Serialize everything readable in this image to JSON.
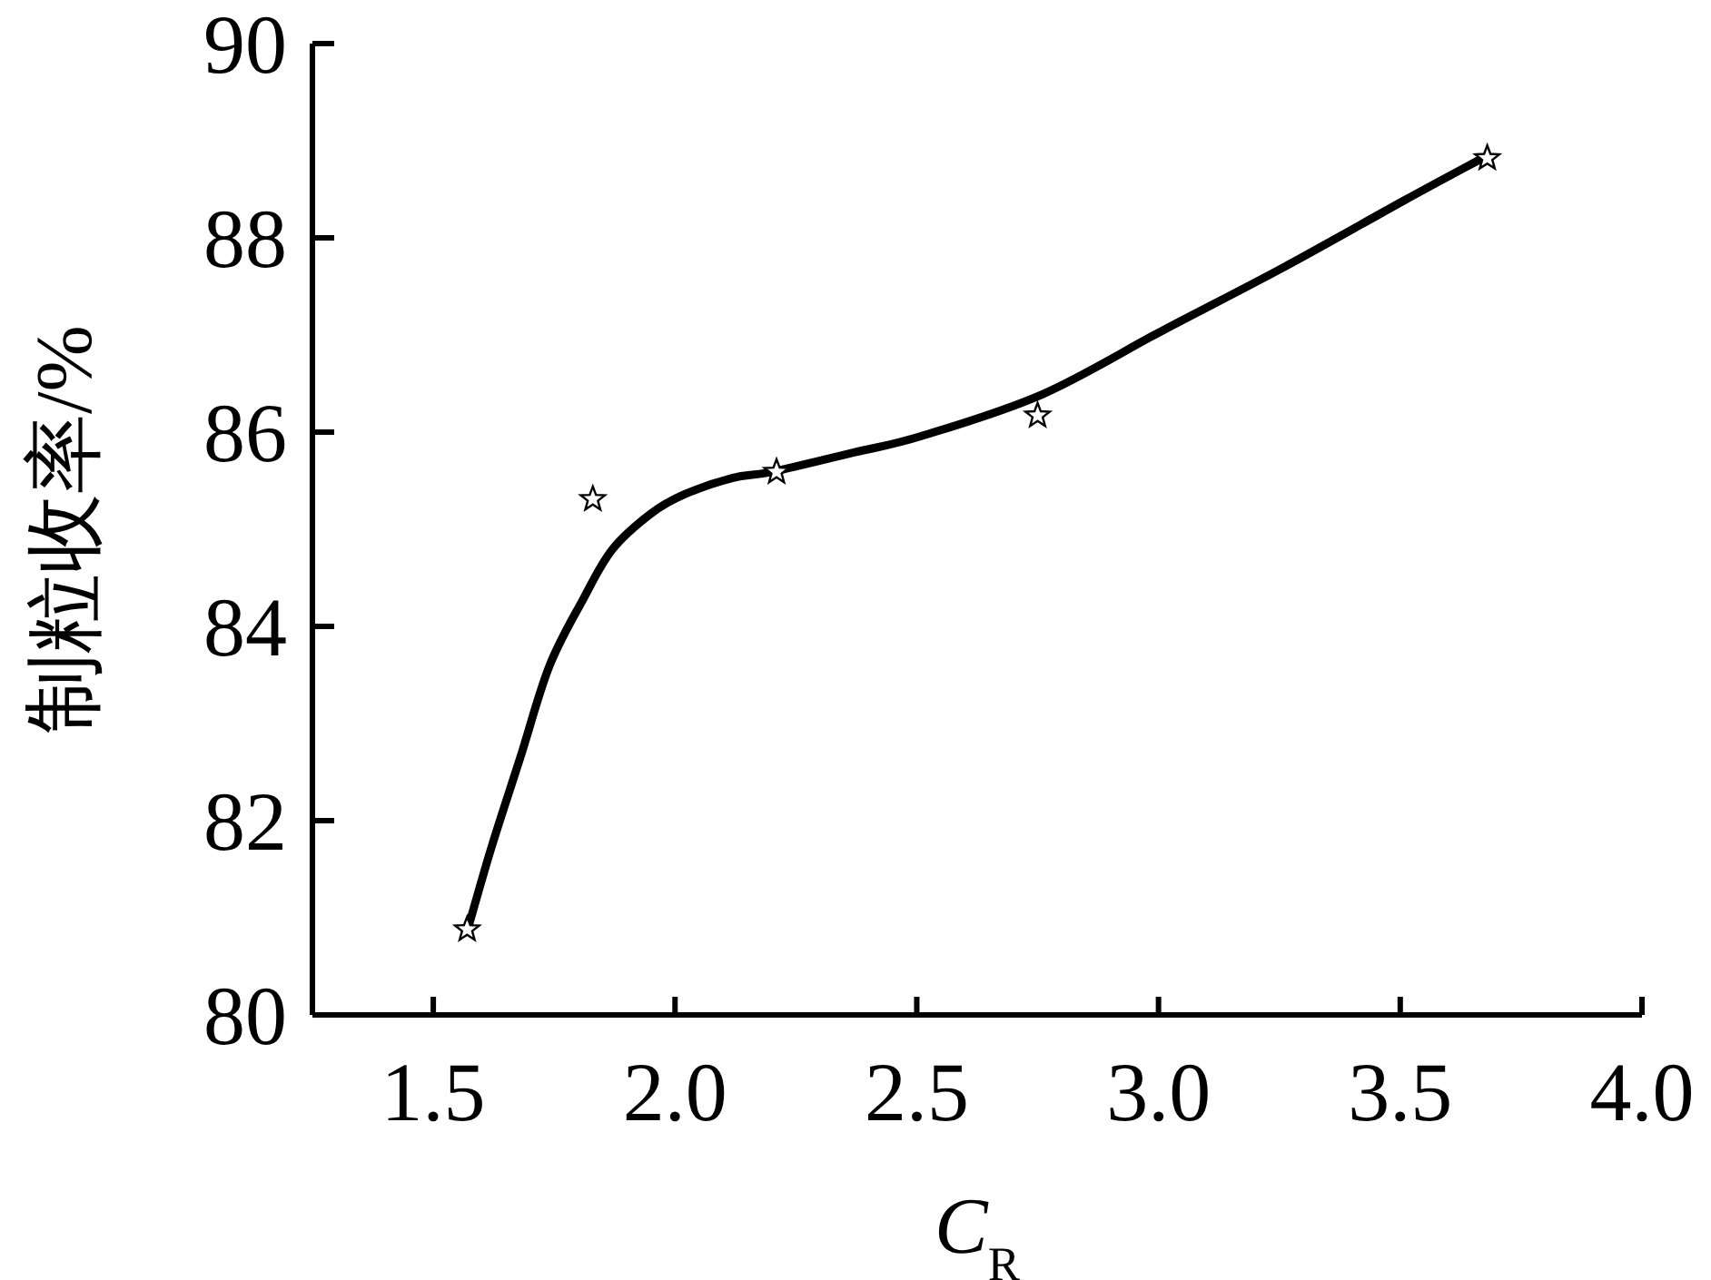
{
  "chart_data": {
    "type": "scatter",
    "xlabel": "C$_{R}$",
    "ylabel": "制粒收率/%",
    "xlim": [
      1.25,
      4.0
    ],
    "ylim": [
      80,
      90
    ],
    "xticks": [
      {
        "value": 1.5,
        "label": "1.5"
      },
      {
        "value": 2.0,
        "label": "2.0"
      },
      {
        "value": 2.5,
        "label": "2.5"
      },
      {
        "value": 3.0,
        "label": "3.0"
      },
      {
        "value": 3.5,
        "label": "3.5"
      },
      {
        "value": 4.0,
        "label": "4.0"
      }
    ],
    "yticks": [
      80,
      82,
      84,
      86,
      88,
      90
    ],
    "marker": "star",
    "line_style": "solid",
    "series": [
      {
        "type": "scatter",
        "color": "#000000",
        "x": [
          1.57,
          1.83,
          2.21,
          2.75,
          3.68
        ],
        "values": [
          80.88,
          85.31,
          85.59,
          86.17,
          88.82
        ]
      },
      {
        "type": "line",
        "color": "#000000",
        "marker": "none",
        "x": [
          1.57,
          1.62,
          1.68,
          1.74,
          1.81,
          1.87,
          1.95,
          2.02,
          2.12,
          2.2,
          2.37,
          2.51,
          2.76,
          3.01,
          3.26,
          3.51,
          3.67
        ],
        "values": [
          80.86,
          81.72,
          82.65,
          83.59,
          84.28,
          84.79,
          85.16,
          85.36,
          85.53,
          85.59,
          85.79,
          85.96,
          86.39,
          87.05,
          87.7,
          88.39,
          88.82
        ]
      }
    ]
  }
}
